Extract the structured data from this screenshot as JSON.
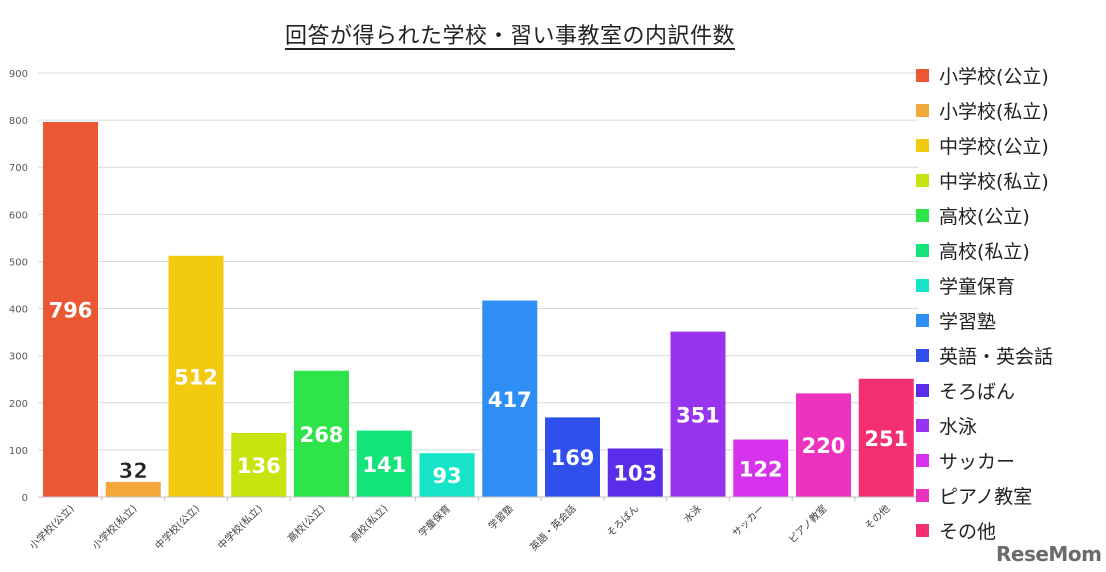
{
  "chart_data": {
    "type": "bar",
    "title": "回答が得られた学校・習い事教室の内訳件数",
    "xlabel": "",
    "ylabel": "",
    "ylim": [
      0,
      900
    ],
    "yticks": [
      "0",
      "100",
      "200",
      "300",
      "400",
      "500",
      "600",
      "700",
      "800",
      "900"
    ],
    "grid": true,
    "legend_position": "right",
    "categories": [
      "小学校(公立)",
      "小学校(私立)",
      "中学校(公立)",
      "中学校(私立)",
      "高校(公立)",
      "高校(私立)",
      "学童保育",
      "学習塾",
      "英語・英会話",
      "そろばん",
      "水泳",
      "サッカー",
      "ピアノ教室",
      "その他"
    ],
    "values": [
      796,
      32,
      512,
      136,
      268,
      141,
      93,
      417,
      169,
      103,
      351,
      122,
      220,
      251
    ],
    "value_labels": [
      "796",
      "32",
      "512",
      "136",
      "268",
      "141",
      "93",
      "417",
      "169",
      "103",
      "351",
      "122",
      "220",
      "251"
    ],
    "colors": [
      "#ea5732",
      "#f4a73b",
      "#f2cb10",
      "#c8e40e",
      "#2ee44a",
      "#12e47a",
      "#16e4c8",
      "#2f8ef4",
      "#2f50ec",
      "#5a2ee8",
      "#9934ee",
      "#d733ec",
      "#ee32c0",
      "#f32f6f"
    ],
    "legend": [
      "小学校(公立)",
      "小学校(私立)",
      "中学校(公立)",
      "中学校(私立)",
      "高校(公立)",
      "高校(私立)",
      "学童保育",
      "学習塾",
      "英語・英会話",
      "そろばん",
      "水泳",
      "サッカー",
      "ピアノ教室",
      "その他"
    ]
  },
  "watermark": "ReseMom"
}
